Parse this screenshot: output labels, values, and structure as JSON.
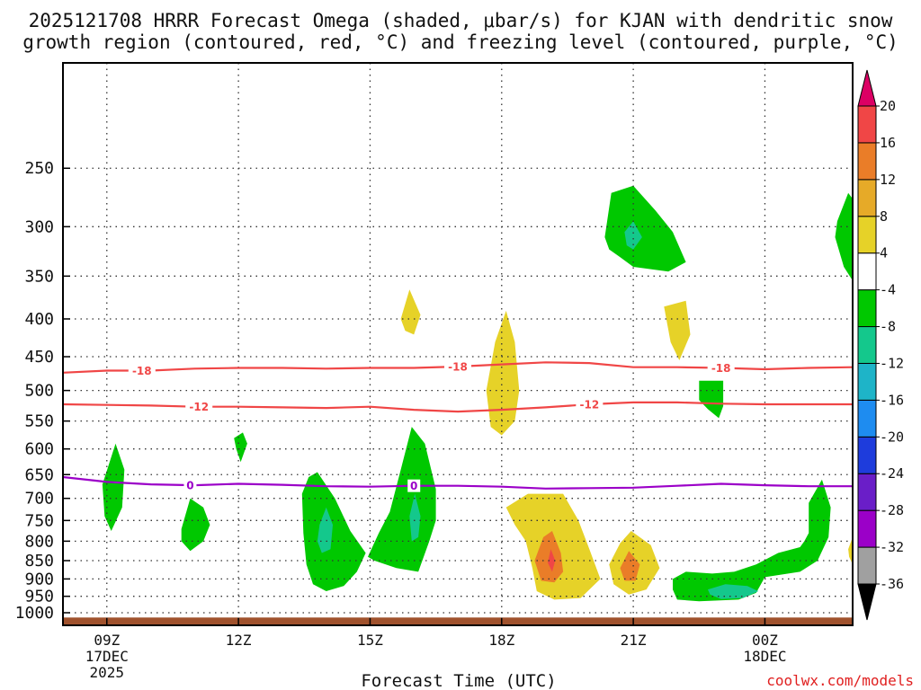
{
  "chart_data": {
    "type": "contour-cross-section",
    "title_lines": [
      "2025121708 HRRR Forecast Omega (shaded, μbar/s) for KJAN with dendritic snow",
      "growth region (contoured, red, °C) and freezing level (contoured, purple, °C)"
    ],
    "xlabel": "Forecast Time (UTC)",
    "credit": "coolwx.com/models",
    "x_range_hours": [
      8,
      26
    ],
    "y_range_mb": [
      1040,
      180
    ],
    "y_ticks": [
      250,
      300,
      350,
      400,
      450,
      500,
      550,
      600,
      650,
      700,
      750,
      800,
      850,
      900,
      950,
      1000
    ],
    "x_ticks": [
      {
        "hour": 9,
        "label": "09Z",
        "sub1": "17DEC",
        "sub2": "2025"
      },
      {
        "hour": 12,
        "label": "12Z",
        "sub1": "",
        "sub2": ""
      },
      {
        "hour": 15,
        "label": "15Z",
        "sub1": "",
        "sub2": ""
      },
      {
        "hour": 18,
        "label": "18Z",
        "sub1": "",
        "sub2": ""
      },
      {
        "hour": 21,
        "label": "21Z",
        "sub1": "",
        "sub2": ""
      },
      {
        "hour": 24,
        "label": "00Z",
        "sub1": "18DEC",
        "sub2": ""
      }
    ],
    "colorbar": {
      "bounds": [
        -36,
        -32,
        -28,
        -24,
        -20,
        -16,
        -12,
        -8,
        -4,
        4,
        8,
        12,
        16,
        20
      ],
      "labels": [
        "20",
        "16",
        "12",
        "8",
        "4",
        "-4",
        "-8",
        "-12",
        "-16",
        "-20",
        "-24",
        "-28",
        "-32",
        "-36"
      ],
      "colors": [
        "#000000",
        "#a0a0a0",
        "#9b00c8",
        "#6a1ec8",
        "#1e3cdc",
        "#1e8cf0",
        "#1eb4c8",
        "#14c88c",
        "#00c800",
        "#ffffff",
        "#e6d228",
        "#e6aa28",
        "#ea7d28",
        "#f04646",
        "#dc0064"
      ]
    },
    "isotherms": [
      {
        "label": "-18",
        "color": "#f04646",
        "points": [
          [
            8,
            473
          ],
          [
            9,
            470
          ],
          [
            10,
            470
          ],
          [
            11,
            467
          ],
          [
            12,
            466
          ],
          [
            13,
            466
          ],
          [
            14,
            467
          ],
          [
            15,
            466
          ],
          [
            16,
            466
          ],
          [
            17,
            464
          ],
          [
            18,
            461
          ],
          [
            19,
            458
          ],
          [
            20,
            459
          ],
          [
            21,
            465
          ],
          [
            22,
            465
          ],
          [
            23,
            466
          ],
          [
            24,
            468
          ],
          [
            25,
            466
          ],
          [
            26,
            465
          ]
        ],
        "label_hours": [
          9.8,
          17.0,
          23.0
        ]
      },
      {
        "label": "-12",
        "color": "#f04646",
        "points": [
          [
            8,
            522
          ],
          [
            9,
            523
          ],
          [
            10,
            524
          ],
          [
            11,
            526
          ],
          [
            12,
            526
          ],
          [
            13,
            527
          ],
          [
            14,
            528
          ],
          [
            15,
            526
          ],
          [
            16,
            531
          ],
          [
            17,
            534
          ],
          [
            18,
            531
          ],
          [
            19,
            527
          ],
          [
            20,
            522
          ],
          [
            21,
            519
          ],
          [
            22,
            519
          ],
          [
            23,
            521
          ],
          [
            24,
            522
          ],
          [
            25,
            522
          ],
          [
            26,
            522
          ]
        ],
        "label_hours": [
          11.1,
          20.0
        ]
      },
      {
        "label": "0",
        "color": "#9b00c8",
        "points": [
          [
            8,
            655
          ],
          [
            9,
            665
          ],
          [
            10,
            670
          ],
          [
            11,
            672
          ],
          [
            12,
            669
          ],
          [
            13,
            671
          ],
          [
            14,
            674
          ],
          [
            15,
            675
          ],
          [
            16,
            673
          ],
          [
            17,
            673
          ],
          [
            18,
            675
          ],
          [
            19,
            679
          ],
          [
            20,
            678
          ],
          [
            21,
            677
          ],
          [
            22,
            673
          ],
          [
            23,
            669
          ],
          [
            24,
            672
          ],
          [
            25,
            674
          ],
          [
            26,
            674
          ]
        ],
        "label_hours": [
          10.9,
          16.0
        ]
      }
    ],
    "omega_areas": [
      {
        "color": "#00c800",
        "points": [
          [
            8.9,
            670
          ],
          [
            9.2,
            590
          ],
          [
            9.4,
            640
          ],
          [
            9.35,
            720
          ],
          [
            9.1,
            775
          ],
          [
            8.95,
            740
          ]
        ]
      },
      {
        "color": "#00c800",
        "points": [
          [
            10.7,
            770
          ],
          [
            10.9,
            700
          ],
          [
            11.2,
            720
          ],
          [
            11.35,
            760
          ],
          [
            11.2,
            800
          ],
          [
            10.9,
            825
          ],
          [
            10.7,
            800
          ]
        ]
      },
      {
        "color": "#00c800",
        "points": [
          [
            11.9,
            580
          ],
          [
            12.1,
            570
          ],
          [
            12.2,
            590
          ],
          [
            12.05,
            625
          ],
          [
            11.95,
            600
          ]
        ]
      },
      {
        "color": "#00c800",
        "points": [
          [
            13.45,
            690
          ],
          [
            13.6,
            655
          ],
          [
            13.8,
            645
          ],
          [
            14.2,
            700
          ],
          [
            14.55,
            775
          ],
          [
            14.9,
            830
          ],
          [
            14.7,
            880
          ],
          [
            14.4,
            920
          ],
          [
            14.0,
            935
          ],
          [
            13.7,
            915
          ],
          [
            13.55,
            860
          ],
          [
            13.48,
            780
          ]
        ]
      },
      {
        "color": "#14c88c",
        "points": [
          [
            13.85,
            760
          ],
          [
            14.0,
            720
          ],
          [
            14.15,
            760
          ],
          [
            14.1,
            820
          ],
          [
            13.9,
            830
          ],
          [
            13.8,
            800
          ]
        ]
      },
      {
        "color": "#00c800",
        "points": [
          [
            14.95,
            840
          ],
          [
            15.2,
            780
          ],
          [
            15.45,
            730
          ],
          [
            15.7,
            640
          ],
          [
            15.95,
            560
          ],
          [
            16.25,
            590
          ],
          [
            16.5,
            680
          ],
          [
            16.5,
            750
          ],
          [
            16.35,
            800
          ],
          [
            16.1,
            880
          ],
          [
            15.6,
            870
          ],
          [
            15.1,
            850
          ]
        ]
      },
      {
        "color": "#14c88c",
        "points": [
          [
            15.9,
            740
          ],
          [
            16.02,
            690
          ],
          [
            16.15,
            740
          ],
          [
            16.1,
            790
          ],
          [
            15.95,
            800
          ]
        ]
      },
      {
        "color": "#e6d228",
        "points": [
          [
            15.7,
            400
          ],
          [
            15.9,
            365
          ],
          [
            16.15,
            395
          ],
          [
            16.0,
            420
          ],
          [
            15.8,
            415
          ]
        ]
      },
      {
        "color": "#e6d228",
        "points": [
          [
            17.65,
            500
          ],
          [
            17.85,
            430
          ],
          [
            18.1,
            390
          ],
          [
            18.3,
            430
          ],
          [
            18.4,
            500
          ],
          [
            18.3,
            550
          ],
          [
            18.0,
            575
          ],
          [
            17.75,
            560
          ]
        ]
      },
      {
        "color": "#e6d228",
        "points": [
          [
            18.1,
            720
          ],
          [
            18.6,
            690
          ],
          [
            19.4,
            690
          ],
          [
            19.75,
            750
          ],
          [
            20.0,
            820
          ],
          [
            20.25,
            900
          ],
          [
            19.8,
            955
          ],
          [
            19.2,
            960
          ],
          [
            18.8,
            935
          ],
          [
            18.7,
            870
          ],
          [
            18.55,
            800
          ],
          [
            18.3,
            760
          ]
        ]
      },
      {
        "color": "#ea7d28",
        "points": [
          [
            18.75,
            850
          ],
          [
            18.95,
            790
          ],
          [
            19.15,
            775
          ],
          [
            19.35,
            830
          ],
          [
            19.4,
            880
          ],
          [
            19.2,
            910
          ],
          [
            18.9,
            905
          ]
        ]
      },
      {
        "color": "#f04646",
        "points": [
          [
            19.05,
            855
          ],
          [
            19.12,
            820
          ],
          [
            19.22,
            850
          ],
          [
            19.15,
            880
          ]
        ]
      },
      {
        "color": "#e6d228",
        "points": [
          [
            20.45,
            860
          ],
          [
            20.7,
            805
          ],
          [
            20.95,
            775
          ],
          [
            21.4,
            810
          ],
          [
            21.6,
            870
          ],
          [
            21.3,
            930
          ],
          [
            20.9,
            945
          ],
          [
            20.55,
            915
          ]
        ]
      },
      {
        "color": "#ea7d28",
        "points": [
          [
            20.7,
            870
          ],
          [
            20.9,
            825
          ],
          [
            21.15,
            860
          ],
          [
            21.05,
            905
          ],
          [
            20.8,
            905
          ]
        ]
      },
      {
        "color": "#e6d228",
        "points": [
          [
            21.7,
            385
          ],
          [
            22.2,
            378
          ],
          [
            22.3,
            420
          ],
          [
            22.05,
            455
          ],
          [
            21.85,
            430
          ]
        ]
      },
      {
        "color": "#00c800",
        "points": [
          [
            20.35,
            310
          ],
          [
            20.5,
            270
          ],
          [
            21.0,
            264
          ],
          [
            21.5,
            285
          ],
          [
            21.9,
            305
          ],
          [
            22.2,
            335
          ],
          [
            21.8,
            345
          ],
          [
            21.0,
            340
          ],
          [
            20.7,
            330
          ],
          [
            20.45,
            322
          ]
        ]
      },
      {
        "color": "#14c88c",
        "points": [
          [
            20.8,
            305
          ],
          [
            21.0,
            295
          ],
          [
            21.2,
            310
          ],
          [
            21.0,
            322
          ],
          [
            20.85,
            318
          ]
        ]
      },
      {
        "color": "#00c800",
        "points": [
          [
            22.5,
            485
          ],
          [
            23.05,
            485
          ],
          [
            23.05,
            525
          ],
          [
            22.95,
            545
          ],
          [
            22.7,
            530
          ],
          [
            22.5,
            515
          ]
        ]
      },
      {
        "color": "#00c800",
        "points": [
          [
            21.9,
            900
          ],
          [
            22.2,
            880
          ],
          [
            22.8,
            885
          ],
          [
            23.3,
            880
          ],
          [
            23.8,
            860
          ],
          [
            24.3,
            830
          ],
          [
            24.8,
            815
          ],
          [
            24.9,
            800
          ],
          [
            25.0,
            780
          ],
          [
            25.0,
            710
          ],
          [
            25.3,
            660
          ],
          [
            25.5,
            720
          ],
          [
            25.45,
            790
          ],
          [
            25.2,
            850
          ],
          [
            24.8,
            880
          ],
          [
            24.0,
            895
          ],
          [
            23.8,
            940
          ],
          [
            23.4,
            960
          ],
          [
            22.5,
            965
          ],
          [
            22.0,
            960
          ],
          [
            21.9,
            930
          ]
        ]
      },
      {
        "color": "#14c88c",
        "points": [
          [
            22.7,
            930
          ],
          [
            23.1,
            915
          ],
          [
            23.6,
            920
          ],
          [
            23.85,
            935
          ],
          [
            23.5,
            955
          ],
          [
            23.0,
            958
          ],
          [
            22.75,
            945
          ]
        ]
      },
      {
        "color": "#00c800",
        "points": [
          [
            25.65,
            295
          ],
          [
            25.9,
            270
          ],
          [
            26.0,
            275
          ],
          [
            26.0,
            355
          ],
          [
            25.8,
            340
          ],
          [
            25.6,
            310
          ]
        ]
      },
      {
        "color": "#e6d228",
        "points": [
          [
            25.9,
            820
          ],
          [
            26.0,
            790
          ],
          [
            26.0,
            860
          ],
          [
            25.92,
            840
          ]
        ]
      }
    ],
    "surface_mb": 1015,
    "surface_color": "#a0522d"
  }
}
